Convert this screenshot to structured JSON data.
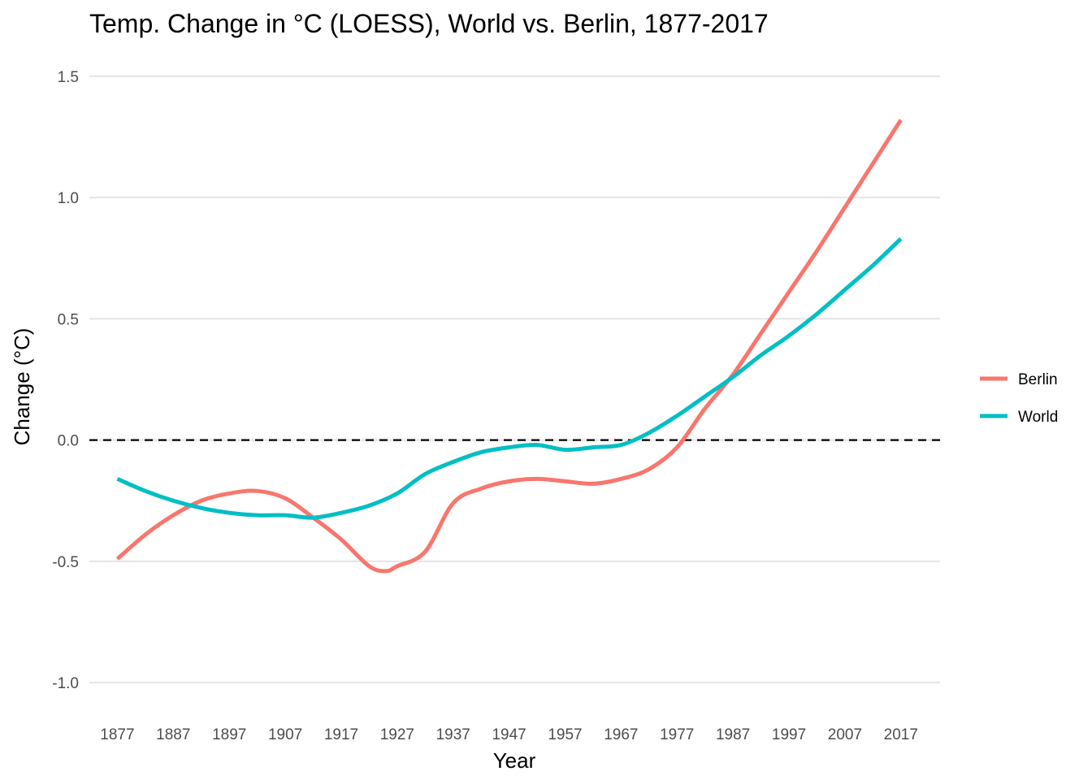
{
  "chart_data": {
    "type": "line",
    "title": "Temp. Change in °C (LOESS), World vs. Berlin, 1877-2017",
    "xlabel": "Year",
    "ylabel": "Change (°C)",
    "xlim": [
      1872,
      2024
    ],
    "ylim": [
      -1.1,
      1.6
    ],
    "x_ticks": [
      1877,
      1887,
      1897,
      1907,
      1917,
      1927,
      1937,
      1947,
      1957,
      1967,
      1977,
      1987,
      1997,
      2007,
      2017
    ],
    "y_ticks": [
      1.5,
      1.0,
      0.5,
      0.0,
      -0.5,
      -1.0
    ],
    "y_tick_labels": [
      "1.5",
      "1.0",
      "0.5",
      "0.0",
      "-0.5",
      "-1.0"
    ],
    "grid": {
      "horizontal": true,
      "vertical": false
    },
    "reference_line": {
      "y": 0,
      "style": "dashed",
      "color": "#000000"
    },
    "legend": {
      "position": "right"
    },
    "series": [
      {
        "name": "Berlin",
        "color": "#F8766D",
        "x": [
          1877,
          1882,
          1887,
          1892,
          1897,
          1902,
          1907,
          1912,
          1917,
          1922,
          1925,
          1927,
          1932,
          1937,
          1942,
          1947,
          1952,
          1957,
          1962,
          1967,
          1972,
          1977,
          1982,
          1987,
          1992,
          1997,
          2002,
          2007,
          2012,
          2017
        ],
        "values": [
          -0.49,
          -0.39,
          -0.31,
          -0.25,
          -0.22,
          -0.21,
          -0.24,
          -0.32,
          -0.41,
          -0.52,
          -0.54,
          -0.52,
          -0.46,
          -0.26,
          -0.2,
          -0.17,
          -0.16,
          -0.17,
          -0.18,
          -0.16,
          -0.12,
          -0.03,
          0.13,
          0.27,
          0.44,
          0.61,
          0.78,
          0.96,
          1.14,
          1.32
        ]
      },
      {
        "name": "World",
        "color": "#00BFC4",
        "x": [
          1877,
          1882,
          1887,
          1892,
          1897,
          1902,
          1907,
          1912,
          1917,
          1922,
          1927,
          1932,
          1937,
          1942,
          1947,
          1952,
          1957,
          1962,
          1967,
          1972,
          1977,
          1982,
          1987,
          1992,
          1997,
          2002,
          2007,
          2012,
          2017
        ],
        "values": [
          -0.16,
          -0.21,
          -0.25,
          -0.28,
          -0.3,
          -0.31,
          -0.31,
          -0.32,
          -0.3,
          -0.27,
          -0.22,
          -0.14,
          -0.09,
          -0.05,
          -0.03,
          -0.02,
          -0.04,
          -0.03,
          -0.02,
          0.03,
          0.1,
          0.18,
          0.26,
          0.35,
          0.43,
          0.52,
          0.62,
          0.72,
          0.83
        ]
      }
    ]
  }
}
